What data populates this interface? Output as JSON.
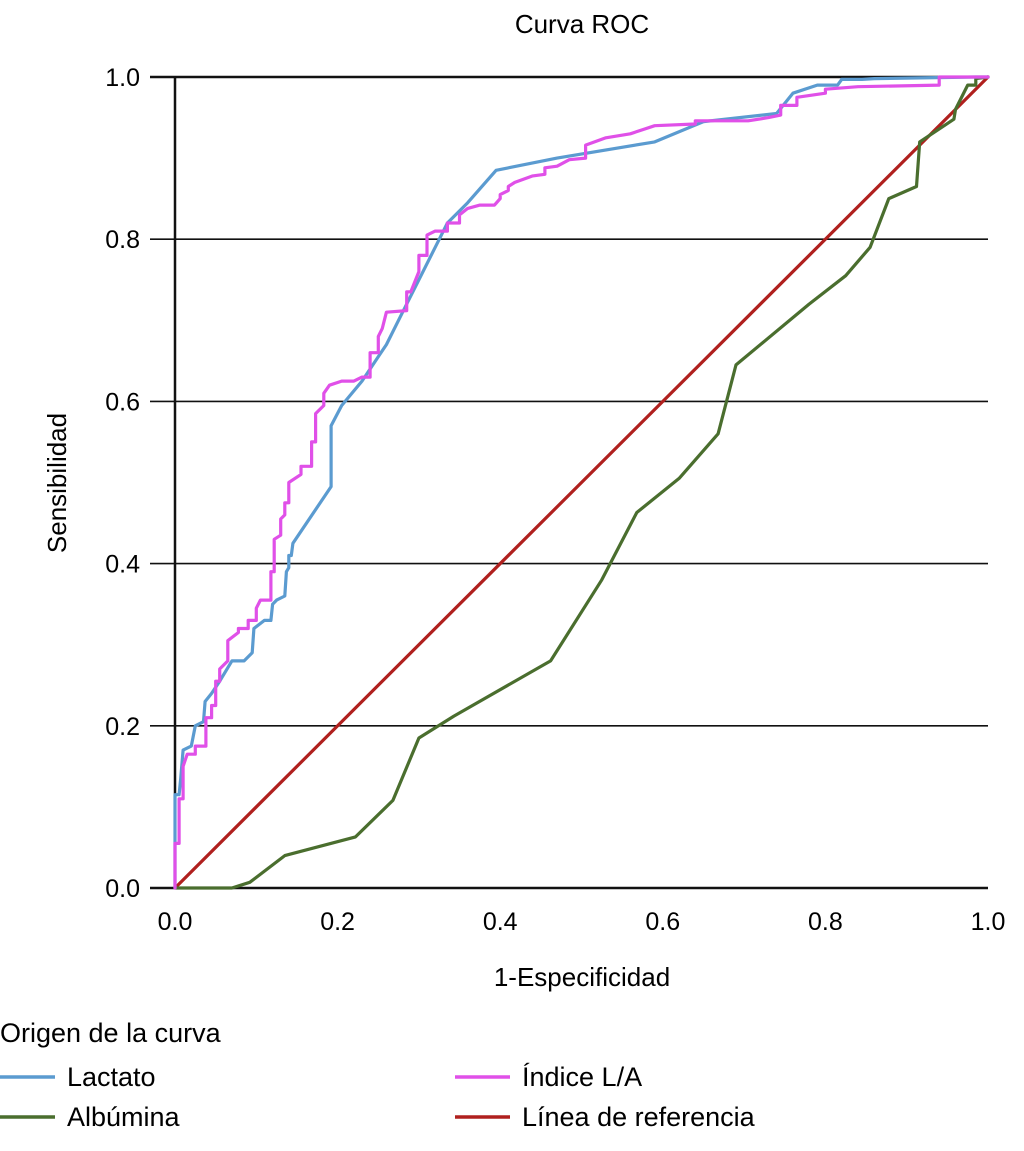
{
  "chart_data": {
    "type": "line",
    "title": "Curva ROC",
    "xlabel": "1-Especificidad",
    "ylabel": "Sensibilidad",
    "xlim": [
      0,
      1
    ],
    "ylim": [
      0,
      1
    ],
    "xticks": [
      "0.0",
      "0.2",
      "0.4",
      "0.6",
      "0.8",
      "1.0"
    ],
    "yticks": [
      "0.0",
      "0.2",
      "0.4",
      "0.6",
      "0.8",
      "1.0"
    ],
    "grid": "horizontal",
    "legend": {
      "title": "Origen de la curva",
      "placement": "bottom",
      "entries": [
        {
          "label": "Lactato",
          "color": "#5b9bd0"
        },
        {
          "label": "Índice L/A",
          "color": "#e050e8"
        },
        {
          "label": "Albúmina",
          "color": "#4a6e2e"
        },
        {
          "label": "Línea de referencia",
          "color": "#b0201e"
        }
      ]
    },
    "series": [
      {
        "name": "Lactato",
        "color": "#5b9bd0",
        "points": [
          [
            0.0,
            0.0
          ],
          [
            0.0,
            0.115
          ],
          [
            0.005,
            0.115
          ],
          [
            0.007,
            0.135
          ],
          [
            0.01,
            0.17
          ],
          [
            0.02,
            0.175
          ],
          [
            0.025,
            0.2
          ],
          [
            0.035,
            0.205
          ],
          [
            0.037,
            0.23
          ],
          [
            0.045,
            0.24
          ],
          [
            0.055,
            0.255
          ],
          [
            0.07,
            0.28
          ],
          [
            0.085,
            0.28
          ],
          [
            0.095,
            0.29
          ],
          [
            0.097,
            0.32
          ],
          [
            0.11,
            0.33
          ],
          [
            0.118,
            0.33
          ],
          [
            0.12,
            0.35
          ],
          [
            0.125,
            0.355
          ],
          [
            0.135,
            0.36
          ],
          [
            0.137,
            0.39
          ],
          [
            0.14,
            0.395
          ],
          [
            0.14,
            0.41
          ],
          [
            0.143,
            0.41
          ],
          [
            0.145,
            0.425
          ],
          [
            0.192,
            0.495
          ],
          [
            0.192,
            0.57
          ],
          [
            0.205,
            0.595
          ],
          [
            0.23,
            0.625
          ],
          [
            0.26,
            0.67
          ],
          [
            0.28,
            0.71
          ],
          [
            0.3,
            0.75
          ],
          [
            0.32,
            0.79
          ],
          [
            0.335,
            0.82
          ],
          [
            0.36,
            0.845
          ],
          [
            0.395,
            0.885
          ],
          [
            0.47,
            0.9
          ],
          [
            0.59,
            0.92
          ],
          [
            0.65,
            0.945
          ],
          [
            0.74,
            0.955
          ],
          [
            0.76,
            0.98
          ],
          [
            0.79,
            0.99
          ],
          [
            0.815,
            0.99
          ],
          [
            0.82,
            0.997
          ],
          [
            0.845,
            0.997
          ],
          [
            0.86,
            0.998
          ],
          [
            0.985,
            1.0
          ],
          [
            1.0,
            1.0
          ]
        ]
      },
      {
        "name": "Índice L/A",
        "color": "#e050e8",
        "points": [
          [
            0.0,
            0.0
          ],
          [
            0.0,
            0.055
          ],
          [
            0.005,
            0.055
          ],
          [
            0.005,
            0.11
          ],
          [
            0.01,
            0.11
          ],
          [
            0.01,
            0.15
          ],
          [
            0.015,
            0.165
          ],
          [
            0.025,
            0.165
          ],
          [
            0.025,
            0.175
          ],
          [
            0.038,
            0.175
          ],
          [
            0.038,
            0.21
          ],
          [
            0.045,
            0.21
          ],
          [
            0.045,
            0.225
          ],
          [
            0.05,
            0.225
          ],
          [
            0.05,
            0.255
          ],
          [
            0.055,
            0.255
          ],
          [
            0.055,
            0.27
          ],
          [
            0.065,
            0.28
          ],
          [
            0.065,
            0.305
          ],
          [
            0.078,
            0.315
          ],
          [
            0.078,
            0.32
          ],
          [
            0.09,
            0.32
          ],
          [
            0.09,
            0.33
          ],
          [
            0.1,
            0.33
          ],
          [
            0.1,
            0.345
          ],
          [
            0.105,
            0.355
          ],
          [
            0.118,
            0.355
          ],
          [
            0.118,
            0.39
          ],
          [
            0.122,
            0.39
          ],
          [
            0.122,
            0.43
          ],
          [
            0.13,
            0.435
          ],
          [
            0.13,
            0.455
          ],
          [
            0.135,
            0.46
          ],
          [
            0.135,
            0.475
          ],
          [
            0.14,
            0.475
          ],
          [
            0.14,
            0.5
          ],
          [
            0.155,
            0.51
          ],
          [
            0.155,
            0.52
          ],
          [
            0.168,
            0.52
          ],
          [
            0.168,
            0.55
          ],
          [
            0.173,
            0.55
          ],
          [
            0.173,
            0.585
          ],
          [
            0.183,
            0.595
          ],
          [
            0.183,
            0.61
          ],
          [
            0.19,
            0.62
          ],
          [
            0.205,
            0.625
          ],
          [
            0.22,
            0.625
          ],
          [
            0.23,
            0.63
          ],
          [
            0.24,
            0.63
          ],
          [
            0.24,
            0.66
          ],
          [
            0.25,
            0.66
          ],
          [
            0.25,
            0.68
          ],
          [
            0.255,
            0.69
          ],
          [
            0.26,
            0.71
          ],
          [
            0.285,
            0.712
          ],
          [
            0.285,
            0.735
          ],
          [
            0.29,
            0.735
          ],
          [
            0.3,
            0.76
          ],
          [
            0.3,
            0.78
          ],
          [
            0.31,
            0.78
          ],
          [
            0.31,
            0.805
          ],
          [
            0.32,
            0.81
          ],
          [
            0.335,
            0.81
          ],
          [
            0.335,
            0.82
          ],
          [
            0.35,
            0.82
          ],
          [
            0.35,
            0.83
          ],
          [
            0.36,
            0.838
          ],
          [
            0.375,
            0.842
          ],
          [
            0.393,
            0.842
          ],
          [
            0.4,
            0.85
          ],
          [
            0.4,
            0.855
          ],
          [
            0.41,
            0.86
          ],
          [
            0.41,
            0.865
          ],
          [
            0.418,
            0.87
          ],
          [
            0.44,
            0.878
          ],
          [
            0.455,
            0.88
          ],
          [
            0.455,
            0.888
          ],
          [
            0.47,
            0.89
          ],
          [
            0.485,
            0.898
          ],
          [
            0.505,
            0.9
          ],
          [
            0.505,
            0.916
          ],
          [
            0.53,
            0.925
          ],
          [
            0.56,
            0.93
          ],
          [
            0.59,
            0.94
          ],
          [
            0.64,
            0.942
          ],
          [
            0.64,
            0.946
          ],
          [
            0.705,
            0.946
          ],
          [
            0.73,
            0.95
          ],
          [
            0.745,
            0.953
          ],
          [
            0.745,
            0.965
          ],
          [
            0.765,
            0.965
          ],
          [
            0.765,
            0.975
          ],
          [
            0.8,
            0.98
          ],
          [
            0.8,
            0.985
          ],
          [
            0.84,
            0.988
          ],
          [
            0.94,
            0.99
          ],
          [
            0.94,
            1.0
          ],
          [
            1.0,
            1.0
          ]
        ]
      },
      {
        "name": "Albúmina",
        "color": "#4a6e2e",
        "points": [
          [
            0.0,
            0.0
          ],
          [
            0.07,
            0.0
          ],
          [
            0.092,
            0.007
          ],
          [
            0.135,
            0.04
          ],
          [
            0.222,
            0.063
          ],
          [
            0.268,
            0.108
          ],
          [
            0.3,
            0.185
          ],
          [
            0.343,
            0.212
          ],
          [
            0.462,
            0.28
          ],
          [
            0.525,
            0.38
          ],
          [
            0.568,
            0.463
          ],
          [
            0.62,
            0.505
          ],
          [
            0.668,
            0.56
          ],
          [
            0.69,
            0.645
          ],
          [
            0.78,
            0.72
          ],
          [
            0.825,
            0.755
          ],
          [
            0.855,
            0.79
          ],
          [
            0.878,
            0.85
          ],
          [
            0.912,
            0.865
          ],
          [
            0.916,
            0.92
          ],
          [
            0.958,
            0.948
          ],
          [
            0.96,
            0.96
          ],
          [
            0.975,
            0.99
          ],
          [
            0.985,
            0.99
          ],
          [
            0.985,
            0.998
          ],
          [
            1.0,
            1.0
          ]
        ]
      },
      {
        "name": "Línea de referencia",
        "color": "#b0201e",
        "points": [
          [
            0.0,
            0.0
          ],
          [
            1.0,
            1.0
          ]
        ]
      }
    ]
  }
}
